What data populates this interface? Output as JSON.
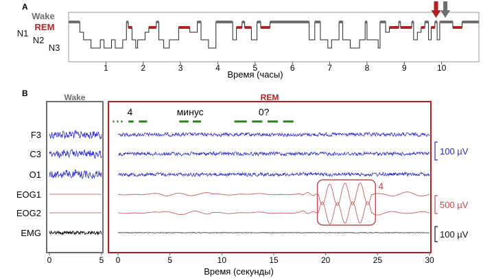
{
  "chart_data": [
    {
      "panel": "A",
      "type": "line",
      "subtype": "hypnogram",
      "xlabel": "Время (часы)",
      "xlim": [
        0,
        11
      ],
      "x_ticks": [
        1,
        2,
        3,
        4,
        5,
        6,
        7,
        8,
        9,
        10
      ],
      "stages": [
        "Wake",
        "REM",
        "N1",
        "N2",
        "N3"
      ],
      "stage_colors": {
        "Wake": "#6e6e6e",
        "REM": "#b22222",
        "other": "#222222"
      },
      "markers": [
        {
          "stage": "REM",
          "time_hours": 9.85,
          "color": "#b22222",
          "shape": "arrow-down"
        },
        {
          "stage": "Wake",
          "time_hours": 10.1,
          "color": "#6e6e6e",
          "shape": "arrow-down"
        }
      ],
      "series": [
        {
          "steps": [
            [
              0.0,
              "Wake"
            ],
            [
              0.3,
              "N1"
            ],
            [
              0.4,
              "N2"
            ],
            [
              0.6,
              "N3"
            ],
            [
              0.85,
              "N2"
            ],
            [
              0.95,
              "N3"
            ],
            [
              1.15,
              "N2"
            ],
            [
              1.25,
              "N3"
            ],
            [
              1.45,
              "N2"
            ],
            [
              1.55,
              "Wake"
            ],
            [
              1.6,
              "REM"
            ],
            [
              1.7,
              "N2"
            ],
            [
              1.8,
              "N3"
            ],
            [
              1.85,
              "N2"
            ],
            [
              2.05,
              "N1"
            ],
            [
              2.15,
              "REM"
            ],
            [
              2.35,
              "Wake"
            ],
            [
              2.42,
              "N2"
            ],
            [
              2.55,
              "N3"
            ],
            [
              2.7,
              "N2"
            ],
            [
              2.95,
              "REM"
            ],
            [
              3.25,
              "N1"
            ],
            [
              3.45,
              "Wake"
            ],
            [
              3.55,
              "N2"
            ],
            [
              3.75,
              "N3"
            ],
            [
              3.95,
              "Wake"
            ],
            [
              4.4,
              "N2"
            ],
            [
              4.5,
              "REM"
            ],
            [
              4.65,
              "Wake"
            ],
            [
              4.72,
              "REM"
            ],
            [
              4.9,
              "N2"
            ],
            [
              5.05,
              "Wake"
            ],
            [
              5.15,
              "REM"
            ],
            [
              5.4,
              "Wake"
            ],
            [
              6.45,
              "N2"
            ],
            [
              6.6,
              "Wake"
            ],
            [
              6.75,
              "N2"
            ],
            [
              6.95,
              "N3"
            ],
            [
              7.05,
              "N2"
            ],
            [
              7.25,
              "Wake"
            ],
            [
              7.35,
              "N2"
            ],
            [
              7.55,
              "N3"
            ],
            [
              7.8,
              "N2"
            ],
            [
              7.95,
              "Wake"
            ],
            [
              8.0,
              "N2"
            ],
            [
              8.3,
              "N3"
            ],
            [
              8.35,
              "Wake"
            ],
            [
              8.5,
              "N1"
            ],
            [
              8.6,
              "REM"
            ],
            [
              8.85,
              "Wake"
            ],
            [
              8.9,
              "REM"
            ],
            [
              9.2,
              "Wake"
            ],
            [
              9.25,
              "N2"
            ],
            [
              9.35,
              "N1"
            ],
            [
              9.45,
              "REM"
            ],
            [
              9.55,
              "Wake"
            ],
            [
              9.65,
              "N2"
            ],
            [
              9.72,
              "REM"
            ],
            [
              9.82,
              "Wake"
            ],
            [
              9.88,
              "N2"
            ],
            [
              9.95,
              "Wake"
            ],
            [
              10.3,
              "REM"
            ],
            [
              10.55,
              "Wake"
            ],
            [
              11.0,
              "Wake"
            ]
          ]
        }
      ]
    },
    {
      "panel": "B",
      "type": "line",
      "subtype": "polysomnography-traces",
      "xlabel": "Время (секунды)",
      "channels": [
        "F3",
        "C3",
        "O1",
        "EOG1",
        "EOG2",
        "EMG"
      ],
      "channel_colors": {
        "EEG": "#2a2acb",
        "EOG": "#c24a4a",
        "EMG": "#111111"
      },
      "scale_bars": [
        {
          "label": "100 µV",
          "channels": [
            "F3",
            "C3",
            "O1"
          ],
          "color": "#2a2acb"
        },
        {
          "label": "500 µV",
          "channels": [
            "EOG1",
            "EOG2"
          ],
          "color": "#c24a4a"
        },
        {
          "label": "100 µV",
          "channels": [
            "EMG"
          ],
          "color": "#111111"
        }
      ],
      "wake_epoch": {
        "title": "Wake",
        "xlim": [
          0,
          5
        ],
        "x_ticks": [
          0,
          5
        ],
        "color": "#6e6e6e"
      },
      "rem_epoch": {
        "title": "REM",
        "xlim": [
          0,
          30
        ],
        "x_ticks": [
          0,
          5,
          10,
          15,
          20,
          25,
          30
        ],
        "color": "#b22222",
        "eye_signals": [
          {
            "label": "4",
            "dash_intervals_s": [
              [
                -0.5,
                0.5
              ],
              [
                1.0,
                1.5
              ],
              [
                2.0,
                2.8
              ]
            ]
          },
          {
            "label": "минус",
            "dash_intervals_s": [
              [
                5.9,
                6.8
              ],
              [
                7.2,
                8.0
              ]
            ]
          },
          {
            "label": "0?",
            "dash_intervals_s": [
              [
                11.2,
                12.4
              ],
              [
                12.9,
                13.9
              ],
              [
                14.4,
                15.4
              ],
              [
                15.9,
                16.9
              ]
            ]
          }
        ],
        "highlight": {
          "label": "4",
          "xlim_s": [
            19.2,
            24.8
          ],
          "channels": [
            "EOG1",
            "EOG2"
          ],
          "color": "#c24a4a"
        }
      }
    }
  ],
  "labels": {
    "panel_a": "A",
    "panel_b": "B"
  }
}
